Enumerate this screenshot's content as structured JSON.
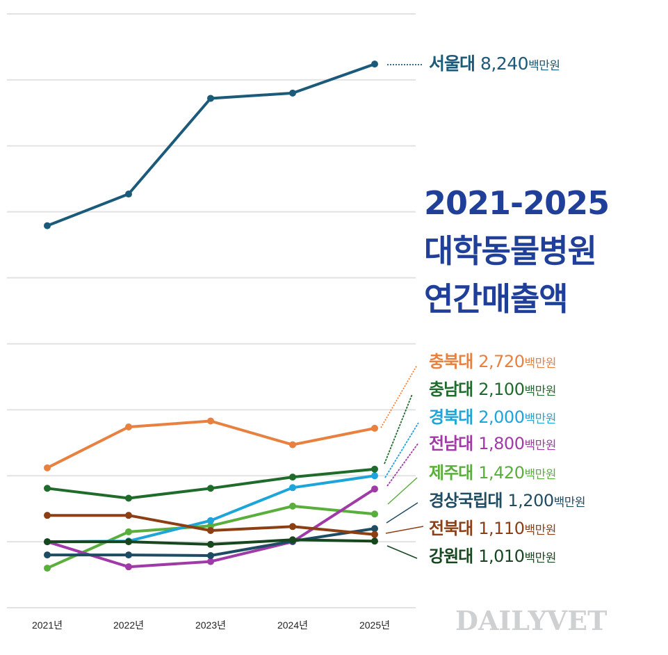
{
  "title": {
    "line1": "2021-2025",
    "line2": "대학동물병원",
    "line3": "연간매출액"
  },
  "watermark": "DAILYVET",
  "chart_data": {
    "type": "line",
    "title": "2021-2025 대학동물병원 연간매출액",
    "xlabel": "",
    "ylabel": "",
    "unit": "백만원",
    "x": [
      "2021년",
      "2022년",
      "2023년",
      "2024년",
      "2025년"
    ],
    "ylim": [
      0,
      9000
    ],
    "ygrid_step": 1000,
    "grid": true,
    "y_tick_labels_shown": false,
    "legend_placement": "right, end-of-line labels",
    "series": [
      {
        "name": "서울대",
        "color": "#1c5a7a",
        "values": [
          5790,
          6270,
          7720,
          7800,
          8240
        ],
        "label_value": "8,240",
        "connector": "dotted"
      },
      {
        "name": "충북대",
        "color": "#e8803f",
        "values": [
          2120,
          2740,
          2830,
          2470,
          2720
        ],
        "label_value": "2,720",
        "connector": "dotted"
      },
      {
        "name": "충남대",
        "color": "#1f6b2b",
        "values": [
          1810,
          1660,
          1810,
          1980,
          2100
        ],
        "label_value": "2,100",
        "connector": "dashed"
      },
      {
        "name": "경북대",
        "color": "#1da4d8",
        "values": [
          1000,
          1010,
          1320,
          1820,
          2000
        ],
        "label_value": "2,000",
        "connector": "dashed"
      },
      {
        "name": "전남대",
        "color": "#a03aa6",
        "values": [
          1000,
          620,
          700,
          1000,
          1800
        ],
        "label_value": "1,800",
        "connector": "dashed"
      },
      {
        "name": "제주대",
        "color": "#5aae3c",
        "values": [
          600,
          1150,
          1240,
          1540,
          1420
        ],
        "label_value": "1,420",
        "connector": "solid"
      },
      {
        "name": "경상국립대",
        "color": "#1e4c63",
        "values": [
          800,
          800,
          790,
          1010,
          1200
        ],
        "label_value": "1,200",
        "connector": "solid"
      },
      {
        "name": "전북대",
        "color": "#8c3f14",
        "values": [
          1400,
          1400,
          1170,
          1230,
          1110
        ],
        "label_value": "1,110",
        "connector": "solid"
      },
      {
        "name": "강원대",
        "color": "#17471f",
        "values": [
          1000,
          1000,
          960,
          1030,
          1010
        ],
        "label_value": "1,010",
        "connector": "solid"
      }
    ]
  }
}
